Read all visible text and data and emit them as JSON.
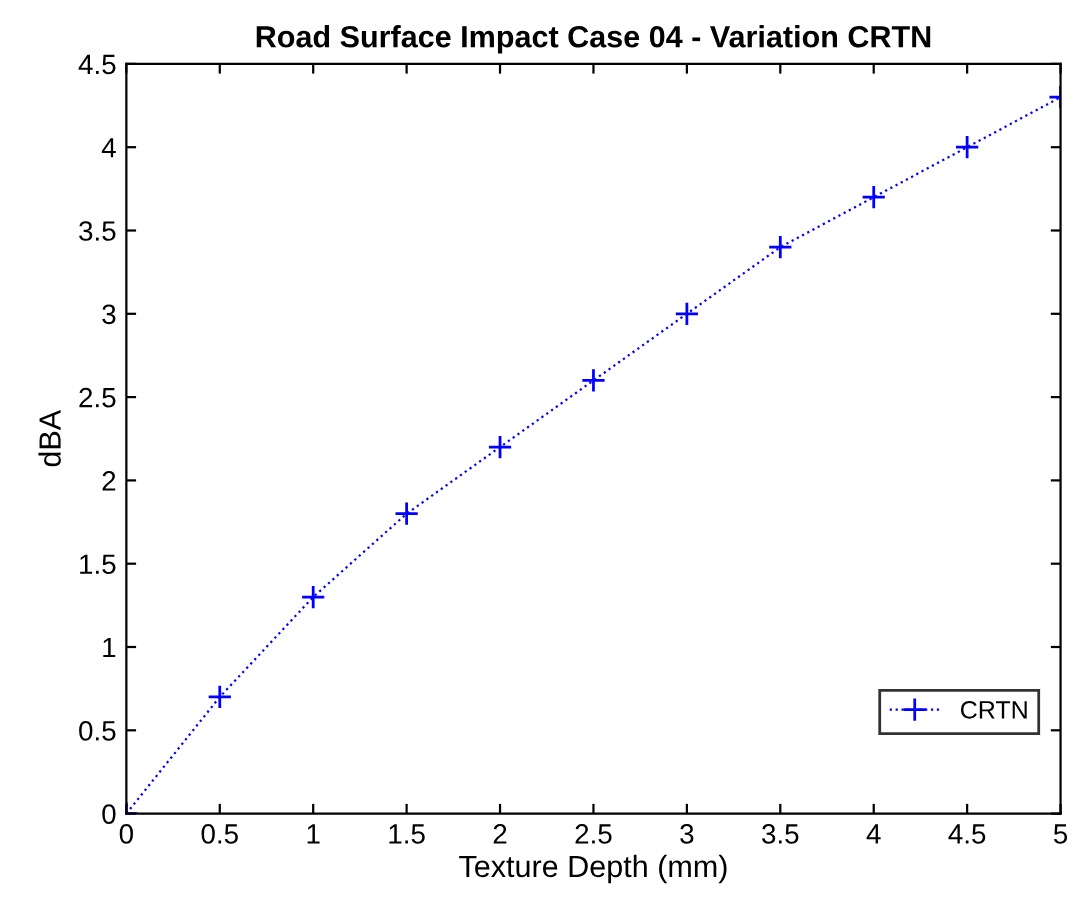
{
  "chart_data": {
    "type": "line",
    "title": "Road Surface Impact Case 04 - Variation CRTN",
    "xlabel": "Texture Depth (mm)",
    "ylabel": "dBA",
    "x": [
      0,
      0.5,
      1,
      1.5,
      2,
      2.5,
      3,
      3.5,
      4,
      4.5,
      5
    ],
    "series": [
      {
        "name": "CRTN",
        "color": "#0000ff",
        "values": [
          0,
          0.7,
          1.3,
          1.8,
          2.2,
          2.6,
          3.0,
          3.4,
          3.7,
          4.0,
          4.3
        ]
      }
    ],
    "xlim": [
      0,
      5
    ],
    "ylim": [
      0,
      4.5
    ],
    "xticks": [
      0,
      0.5,
      1,
      1.5,
      2,
      2.5,
      3,
      3.5,
      4,
      4.5,
      5
    ],
    "yticks": [
      0,
      0.5,
      1,
      1.5,
      2,
      2.5,
      3,
      3.5,
      4,
      4.5
    ],
    "marker": "cross",
    "line_style": "dotted",
    "legend": "bottom right",
    "grid": false
  }
}
